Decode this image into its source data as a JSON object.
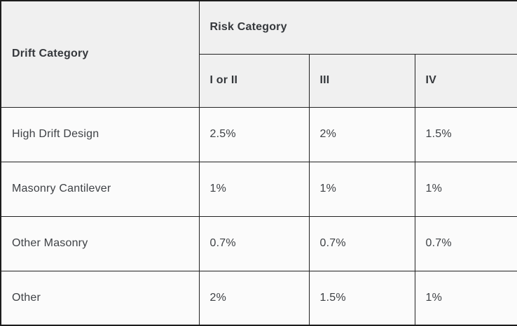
{
  "chart_data": {
    "type": "table",
    "corner_header": "Drift Category",
    "group_header": "Risk Category",
    "group_columns": [
      "I or II",
      "III",
      "IV"
    ],
    "rows": [
      {
        "label": "High Drift Design",
        "values": [
          "2.5%",
          "2%",
          "1.5%"
        ]
      },
      {
        "label": "Masonry Cantilever",
        "values": [
          "1%",
          "1%",
          "1%"
        ]
      },
      {
        "label": "Other Masonry",
        "values": [
          "0.7%",
          "0.7%",
          "0.7%"
        ]
      },
      {
        "label": "Other",
        "values": [
          "2%",
          "1.5%",
          "1%"
        ]
      }
    ]
  },
  "colors": {
    "header_bg": "#f0f0f0",
    "body_bg": "#fbfbfb",
    "border": "#1d1d1d",
    "header_text": "#35383c",
    "body_text": "#3e4145"
  }
}
